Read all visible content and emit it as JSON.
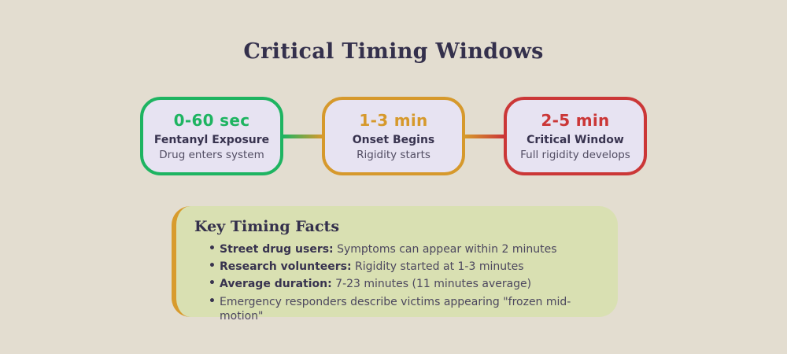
{
  "page": {
    "title": "Critical Timing Windows",
    "background_color": "#e3ddd0"
  },
  "timeline": {
    "steps": [
      {
        "time": "0-60 sec",
        "heading": "Fentanyl Exposure",
        "description": "Drug enters system",
        "color": "#1eb461"
      },
      {
        "time": "1-3 min",
        "heading": "Onset Begins",
        "description": "Rigidity starts",
        "color": "#d6992c"
      },
      {
        "time": "2-5 min",
        "heading": "Critical Window",
        "description": "Full rigidity develops",
        "color": "#cb3737"
      }
    ],
    "box_fill_color": "#e7e3f2"
  },
  "facts": {
    "title": "Key Timing Facts",
    "accent_color": "#d89b2d",
    "background_color": "#d9e0b2",
    "items": [
      {
        "label": "Street drug users:",
        "text": " Symptoms can appear within 2 minutes"
      },
      {
        "label": "Research volunteers:",
        "text": " Rigidity started at 1-3 minutes"
      },
      {
        "label": "Average duration:",
        "text": " 7-23 minutes (11 minutes average)"
      },
      {
        "label": "",
        "text": "Emergency responders describe victims appearing \"frozen mid-motion\""
      }
    ]
  }
}
